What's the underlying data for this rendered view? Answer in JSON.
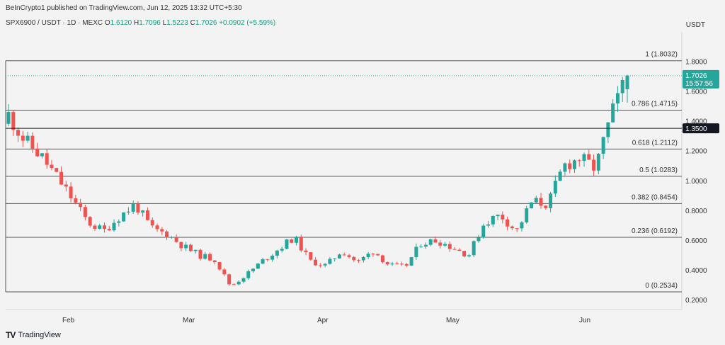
{
  "header": {
    "publisher": "BeInCrypto1 published on TradingView.com, Jun 12, 2025 13:32 UTC+5:30",
    "symbol": "SPX6900 / USDT · 1D · MEXC",
    "o_label": "O",
    "o_value": "1.6120",
    "h_label": "H",
    "h_value": "1.7096",
    "l_label": "L",
    "l_value": "1.5223",
    "c_label": "C",
    "c_value": "1.7026",
    "change": "+0.0902 (+5.59%)",
    "currency": "USDT"
  },
  "footer": {
    "brand": "TradingView"
  },
  "colors": {
    "up": "#26a69a",
    "down": "#ef5350",
    "fib_line": "#555555",
    "price_badge": "#26a69a",
    "level_badge": "#131722"
  },
  "chart_data": {
    "type": "candlestick",
    "title": "SPX6900 / USDT · 1D · MEXC",
    "y_axis": {
      "ticks": [
        "0.2000",
        "0.4000",
        "0.6000",
        "0.8000",
        "1.0000",
        "1.2000",
        "1.4000",
        "1.6000",
        "1.8000"
      ],
      "ylim": [
        0.15,
        1.95
      ]
    },
    "x_axis": {
      "ticks": [
        "Feb",
        "Mar",
        "Apr",
        "May",
        "Jun"
      ]
    },
    "fib_levels": [
      {
        "label": "1 (1.8032)",
        "value": 1.8032
      },
      {
        "label": "0.786 (1.4715)",
        "value": 1.4715
      },
      {
        "label": "0.618 (1.2112)",
        "value": 1.2112
      },
      {
        "label": "0.5 (1.0283)",
        "value": 1.0283
      },
      {
        "label": "0.382 (0.8454)",
        "value": 0.8454
      },
      {
        "label": "0.236 (0.6192)",
        "value": 0.6192
      },
      {
        "label": "0 (0.2534)",
        "value": 0.2534
      }
    ],
    "current_price": {
      "value": 1.7026,
      "label": "1.7026",
      "countdown": "15:57:56"
    },
    "marked_level": {
      "value": 1.35,
      "label": "1.3500"
    },
    "close_series_sampled": [
      1.44,
      1.27,
      1.17,
      1.03,
      0.88,
      0.72,
      0.66,
      0.76,
      0.84,
      0.68,
      0.64,
      0.56,
      0.5,
      0.47,
      0.29,
      0.37,
      0.46,
      0.54,
      0.62,
      0.46,
      0.43,
      0.53,
      0.45,
      0.53,
      0.43,
      0.42,
      0.58,
      0.6,
      0.55,
      0.5,
      0.72,
      0.77,
      0.66,
      0.86,
      0.84,
      1.1,
      1.15,
      1.08,
      1.44,
      1.7
    ]
  }
}
